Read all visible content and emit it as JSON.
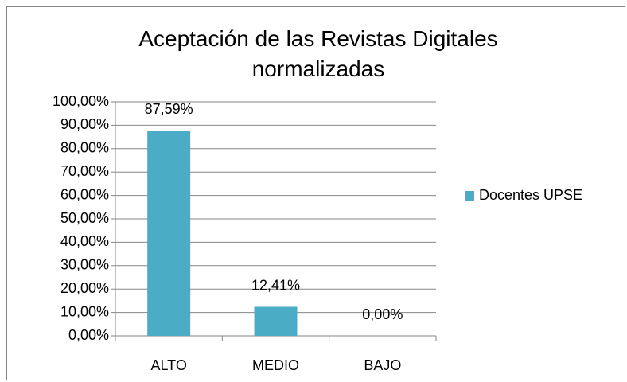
{
  "chart_data": {
    "type": "bar",
    "title": "Aceptación de las Revistas Digitales normalizadas",
    "categories": [
      "ALTO",
      "MEDIO",
      "BAJO"
    ],
    "series": [
      {
        "name": "Docentes UPSE",
        "color": "#4bacc6",
        "values": [
          87.59,
          12.41,
          0
        ],
        "value_labels": [
          "87,59%",
          "12,41%",
          "0,00%"
        ]
      }
    ],
    "ylim": [
      0,
      100
    ],
    "yticks": [
      {
        "value": 0,
        "label": "0,00%"
      },
      {
        "value": 10,
        "label": "10,00%"
      },
      {
        "value": 20,
        "label": "20,00%"
      },
      {
        "value": 30,
        "label": "30,00%"
      },
      {
        "value": 40,
        "label": "40,00%"
      },
      {
        "value": 50,
        "label": "50,00%"
      },
      {
        "value": 60,
        "label": "60,00%"
      },
      {
        "value": 70,
        "label": "70,00%"
      },
      {
        "value": 80,
        "label": "80,00%"
      },
      {
        "value": 90,
        "label": "90,00%"
      },
      {
        "value": 100,
        "label": "100,00%"
      }
    ],
    "grid": true,
    "legend": "right"
  }
}
